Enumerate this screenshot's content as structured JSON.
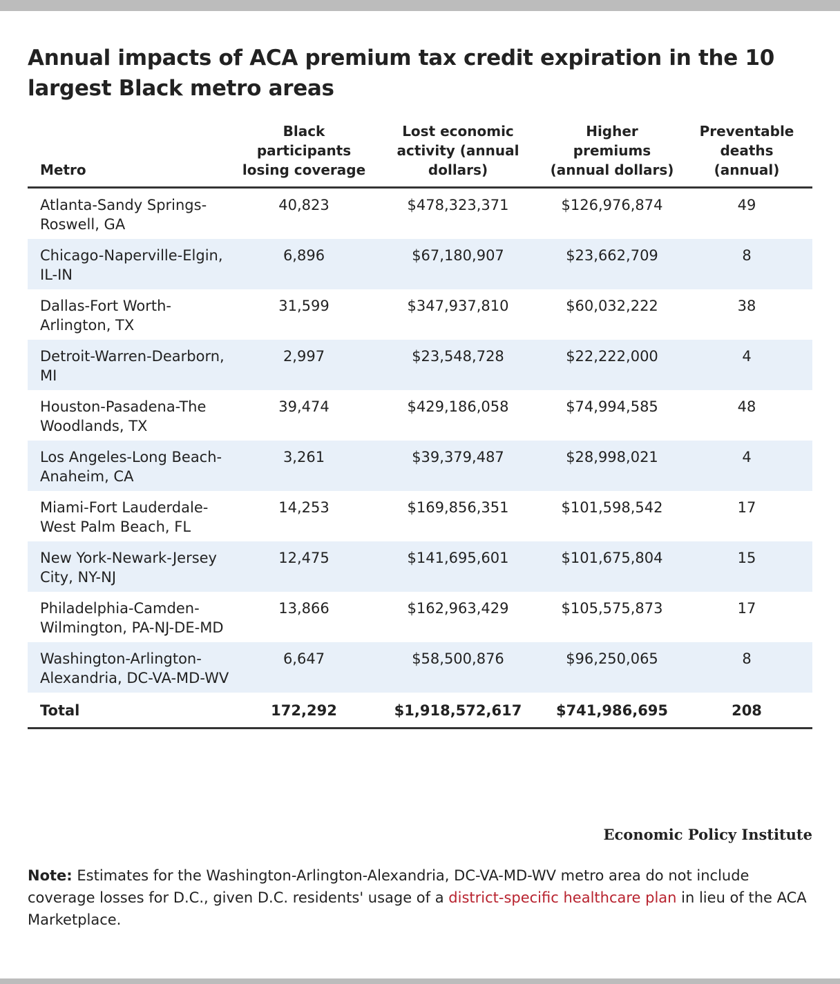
{
  "title": "Annual impacts of ACA premium tax credit expiration in the 10 largest Black metro areas",
  "table": {
    "headers": [
      "Metro",
      "Black participants losing coverage",
      "Lost economic activity (annual dollars)",
      "Higher premiums (annual dollars)",
      "Preventable deaths (annual)"
    ],
    "rows": [
      [
        "Atlanta-Sandy Springs-Roswell, GA",
        "40,823",
        "$478,323,371",
        "$126,976,874",
        "49"
      ],
      [
        "Chicago-Naperville-Elgin, IL-IN",
        "6,896",
        "$67,180,907",
        "$23,662,709",
        "8"
      ],
      [
        "Dallas-Fort Worth-Arlington, TX",
        "31,599",
        "$347,937,810",
        "$60,032,222",
        "38"
      ],
      [
        "Detroit-Warren-Dearborn, MI",
        "2,997",
        "$23,548,728",
        "$22,222,000",
        "4"
      ],
      [
        "Houston-Pasadena-The Woodlands, TX",
        "39,474",
        "$429,186,058",
        "$74,994,585",
        "48"
      ],
      [
        "Los Angeles-Long Beach-Anaheim, CA",
        "3,261",
        "$39,379,487",
        "$28,998,021",
        "4"
      ],
      [
        "Miami-Fort Lauderdale-West Palm Beach, FL",
        "14,253",
        "$169,856,351",
        "$101,598,542",
        "17"
      ],
      [
        "New York-Newark-Jersey City, NY-NJ",
        "12,475",
        "$141,695,601",
        "$101,675,804",
        "15"
      ],
      [
        "Philadelphia-Camden-Wilmington, PA-NJ-DE-MD",
        "13,866",
        "$162,963,429",
        "$105,575,873",
        "17"
      ],
      [
        "Washington-Arlington-Alexandria, DC-VA-MD-WV",
        "6,647",
        "$58,500,876",
        "$96,250,065",
        "8"
      ]
    ],
    "total": [
      "Total",
      "172,292",
      "$1,918,572,617",
      "$741,986,695",
      "208"
    ]
  },
  "source": "Economic Policy Institute",
  "note": {
    "label": "Note:",
    "text_before": "Estimates for the Washington-Arlington-Alexandria, DC-VA-MD-WV metro area do not include coverage losses for D.C., given D.C. residents' usage of a",
    "link": "district-specific healthcare plan",
    "text_after": "in lieu of the ACA Marketplace."
  }
}
